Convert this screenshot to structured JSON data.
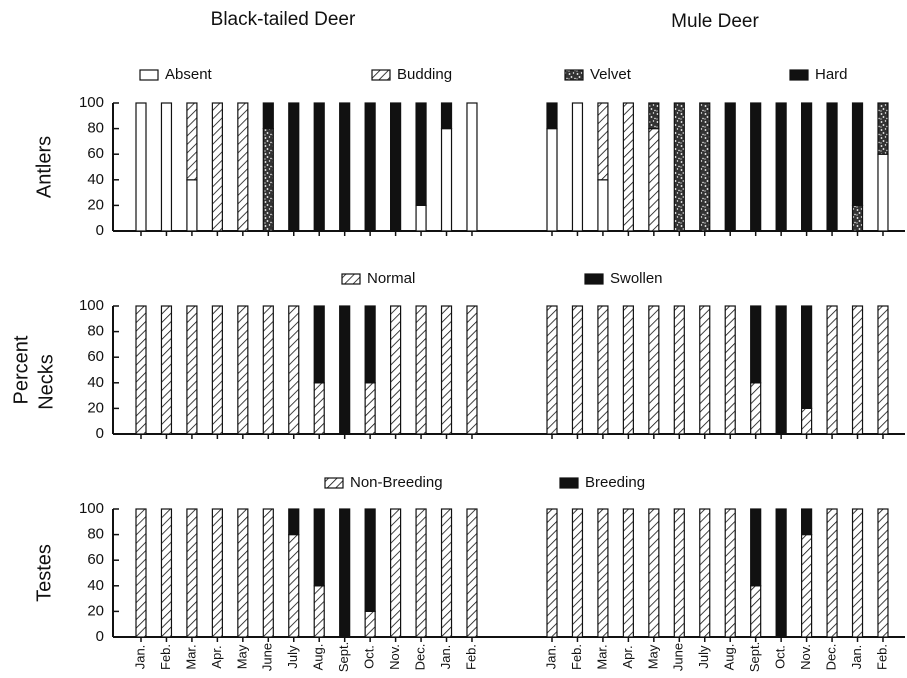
{
  "chart_data": {
    "type": "bar",
    "stacked": true,
    "titles": [
      "Black-tailed Deer",
      "Mule Deer"
    ],
    "y_label": "Percent",
    "categories": [
      "Jan.",
      "Feb.",
      "Mar.",
      "Apr.",
      "May",
      "June",
      "July",
      "Aug.",
      "Sept.",
      "Oct.",
      "Nov.",
      "Dec.",
      "Jan.",
      "Feb."
    ],
    "ylim": [
      0,
      100
    ],
    "yticks": [
      0,
      20,
      40,
      60,
      80,
      100
    ],
    "rows": [
      {
        "label": "Antlers",
        "series": [
          {
            "name": "Absent",
            "fill": "white",
            "values": [
              [
                100,
                100,
                40,
                0,
                0,
                0,
                0,
                0,
                0,
                0,
                0,
                20,
                80,
                100
              ],
              [
                80,
                100,
                40,
                0,
                0,
                0,
                0,
                0,
                0,
                0,
                0,
                0,
                0,
                60
              ]
            ]
          },
          {
            "name": "Budding",
            "fill": "hatch",
            "values": [
              [
                0,
                0,
                60,
                100,
                100,
                0,
                0,
                0,
                0,
                0,
                0,
                0,
                0,
                0
              ],
              [
                0,
                0,
                60,
                100,
                80,
                0,
                0,
                0,
                0,
                0,
                0,
                0,
                0,
                0
              ]
            ]
          },
          {
            "name": "Velvet",
            "fill": "speckle",
            "values": [
              [
                0,
                0,
                0,
                0,
                0,
                80,
                0,
                0,
                0,
                0,
                0,
                0,
                0,
                0
              ],
              [
                0,
                0,
                0,
                0,
                20,
                100,
                100,
                0,
                0,
                0,
                0,
                0,
                20,
                40
              ]
            ]
          },
          {
            "name": "Hard",
            "fill": "black",
            "values": [
              [
                0,
                0,
                0,
                0,
                0,
                20,
                100,
                100,
                100,
                100,
                100,
                80,
                20,
                0
              ],
              [
                20,
                0,
                0,
                0,
                0,
                0,
                0,
                100,
                100,
                100,
                100,
                100,
                80,
                0
              ]
            ]
          }
        ]
      },
      {
        "label": "Necks",
        "series": [
          {
            "name": "Normal",
            "fill": "hatch",
            "values": [
              [
                100,
                100,
                100,
                100,
                100,
                100,
                100,
                40,
                0,
                40,
                100,
                100,
                100,
                100
              ],
              [
                100,
                100,
                100,
                100,
                100,
                100,
                100,
                100,
                40,
                0,
                20,
                100,
                100,
                100
              ]
            ]
          },
          {
            "name": "Swollen",
            "fill": "black",
            "values": [
              [
                0,
                0,
                0,
                0,
                0,
                0,
                0,
                60,
                100,
                60,
                0,
                0,
                0,
                0
              ],
              [
                0,
                0,
                0,
                0,
                0,
                0,
                0,
                0,
                60,
                100,
                80,
                0,
                0,
                0
              ]
            ]
          }
        ]
      },
      {
        "label": "Testes",
        "series": [
          {
            "name": "Non-Breeding",
            "fill": "hatch",
            "values": [
              [
                100,
                100,
                100,
                100,
                100,
                100,
                80,
                40,
                0,
                20,
                100,
                100,
                100,
                100
              ],
              [
                100,
                100,
                100,
                100,
                100,
                100,
                100,
                100,
                40,
                0,
                80,
                100,
                100,
                100
              ]
            ]
          },
          {
            "name": "Breeding",
            "fill": "black",
            "values": [
              [
                0,
                0,
                0,
                0,
                0,
                0,
                20,
                60,
                100,
                80,
                0,
                0,
                0,
                0
              ],
              [
                0,
                0,
                0,
                0,
                0,
                0,
                0,
                0,
                60,
                100,
                20,
                0,
                0,
                0
              ]
            ]
          }
        ]
      }
    ]
  }
}
